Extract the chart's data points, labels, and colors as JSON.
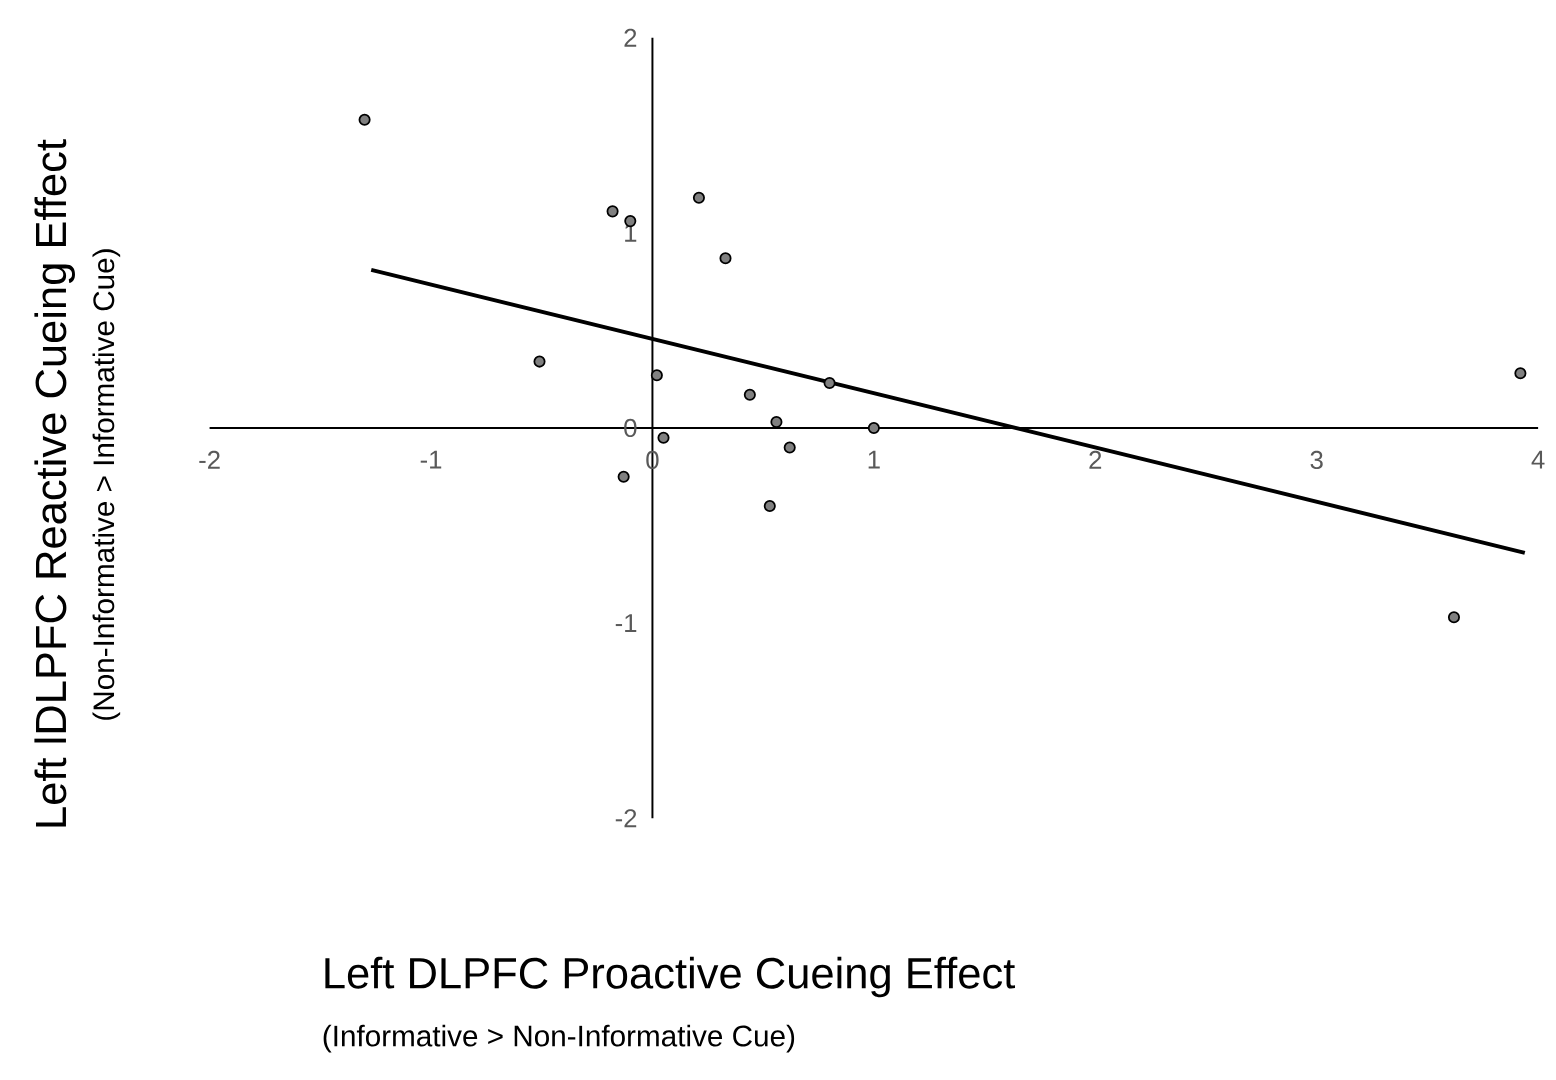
{
  "chart_data": {
    "type": "scatter",
    "xlabel": "Left DLPFC Proactive Cueing Effect",
    "ylabel": "Left lDLPFC Reactive Cueing Effect",
    "annotations": [
      "(Informative > Non-Informative Cue)",
      "(Non-Informative > Informative Cue)"
    ],
    "xlim": [
      -2,
      4
    ],
    "ylim": [
      -2,
      2
    ],
    "xticks": [
      -2,
      -1,
      0,
      1,
      2,
      3,
      4
    ],
    "yticks": [
      -2,
      -1,
      0,
      1,
      2
    ],
    "series": [
      {
        "color": "#808080",
        "marker": "circle",
        "x": [
          -1.3,
          -0.18,
          -0.1,
          0.21,
          0.33,
          -0.51,
          0.02,
          0.44,
          0.8,
          0.56,
          0.05,
          0.62,
          1.0,
          -0.13,
          0.53,
          3.92,
          3.62
        ],
        "values": [
          1.58,
          1.11,
          1.06,
          1.18,
          0.87,
          0.34,
          0.27,
          0.17,
          0.23,
          0.03,
          -0.05,
          -0.1,
          0.0,
          -0.25,
          -0.4,
          0.28,
          -0.97
        ]
      },
      {
        "type": "line",
        "color": "#000000",
        "marker": "none",
        "x": [
          -1.27,
          3.94
        ],
        "values": [
          0.81,
          -0.64
        ]
      }
    ]
  }
}
